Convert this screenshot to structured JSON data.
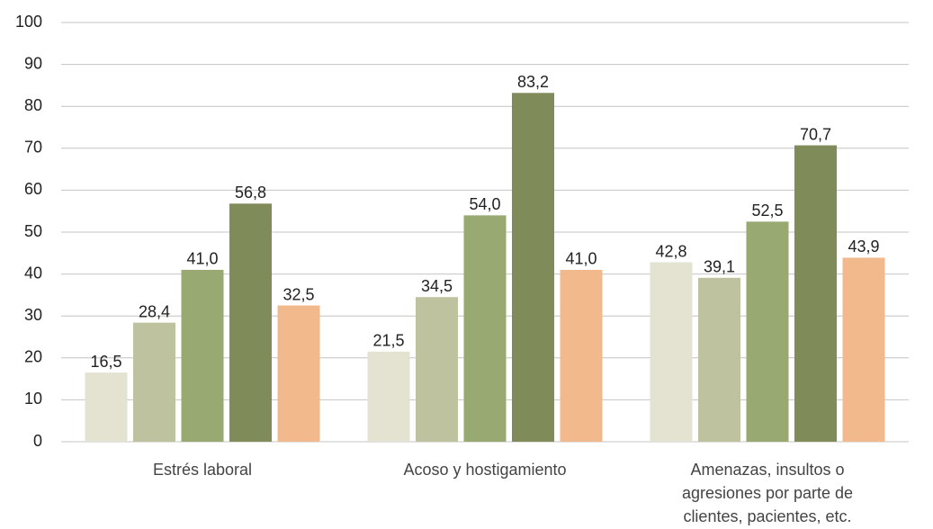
{
  "chart_data": {
    "type": "bar",
    "categories": [
      "Estrés laboral",
      "Acoso y hostigamiento",
      "Amenazas, insultos o agresiones por parte de clientes, pacientes, etc."
    ],
    "series": [
      {
        "color": "#e4e2d1",
        "values": [
          16.5,
          21.5,
          42.8
        ],
        "value_labels": [
          "16,5",
          "21,5",
          "42,8"
        ]
      },
      {
        "color": "#bfc29f",
        "values": [
          28.4,
          34.5,
          39.1
        ],
        "value_labels": [
          "28,4",
          "34,5",
          "39,1"
        ]
      },
      {
        "color": "#98aa72",
        "values": [
          41.0,
          54.0,
          52.5
        ],
        "value_labels": [
          "41,0",
          "54,0",
          "52,5"
        ]
      },
      {
        "color": "#7f8c5a",
        "values": [
          56.8,
          83.2,
          70.7
        ],
        "value_labels": [
          "56,8",
          "83,2",
          "70,7"
        ]
      },
      {
        "color": "#f2b98c",
        "values": [
          32.5,
          41.0,
          43.9
        ],
        "value_labels": [
          "32,5",
          "41,0",
          "43,9"
        ]
      }
    ],
    "ylim": [
      0,
      100
    ],
    "yticks": [
      0,
      10,
      20,
      30,
      40,
      50,
      60,
      70,
      80,
      90,
      100
    ],
    "grid": true
  }
}
